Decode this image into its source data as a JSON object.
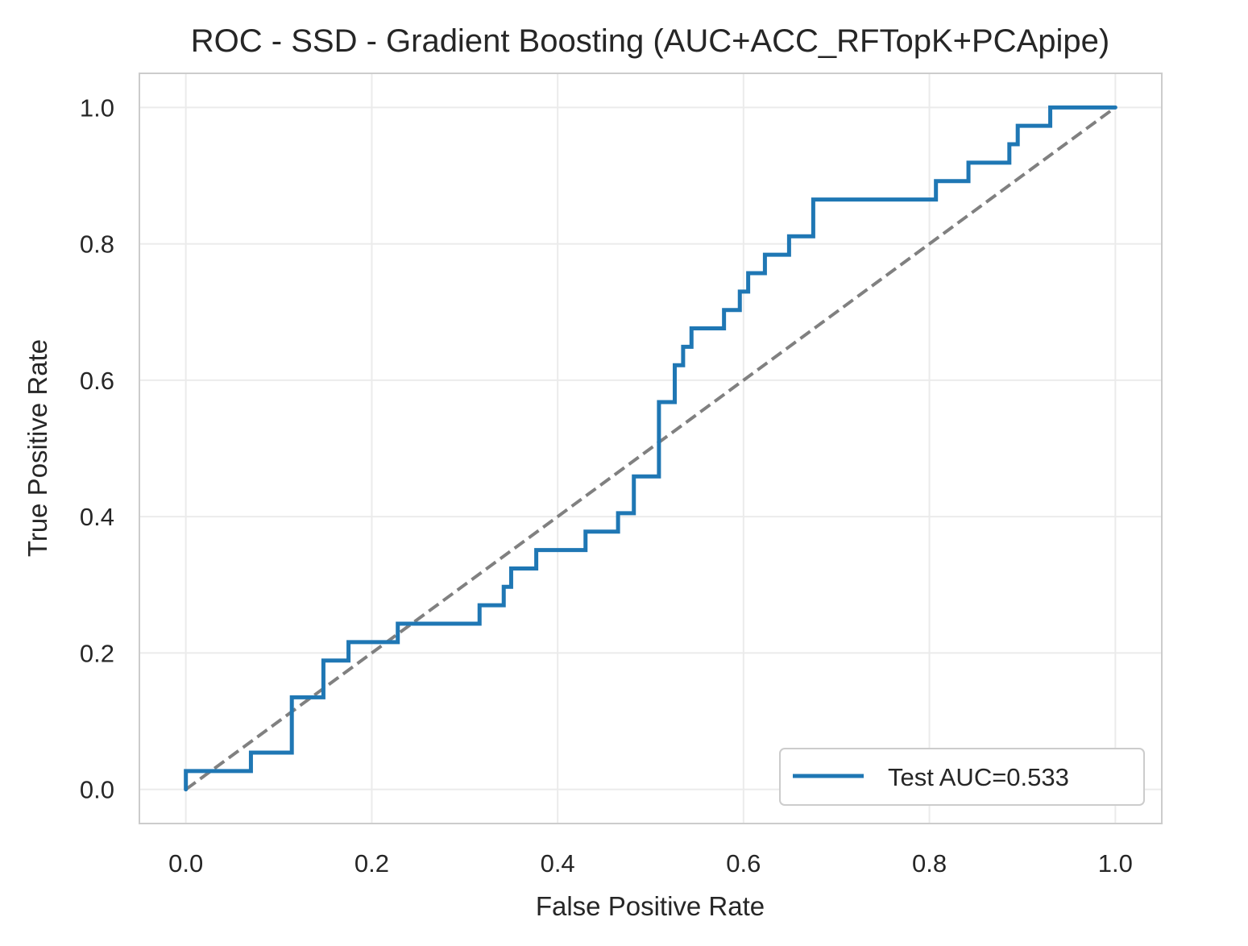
{
  "chart_data": {
    "type": "line",
    "title": "ROC - SSD - Gradient Boosting (AUC+ACC_RFTopK+PCApipe)",
    "xlabel": "False Positive Rate",
    "ylabel": "True Positive Rate",
    "xlim": [
      -0.05,
      1.05
    ],
    "ylim": [
      -0.05,
      1.05
    ],
    "xticks": [
      0.0,
      0.2,
      0.4,
      0.6,
      0.8,
      1.0
    ],
    "yticks": [
      0.0,
      0.2,
      0.4,
      0.6,
      0.8,
      1.0
    ],
    "xtick_labels": [
      "0.0",
      "0.2",
      "0.4",
      "0.6",
      "0.8",
      "1.0"
    ],
    "ytick_labels": [
      "0.0",
      "0.2",
      "0.4",
      "0.6",
      "0.8",
      "1.0"
    ],
    "grid": true,
    "legend": {
      "placement": "lower-right"
    },
    "series": [
      {
        "name": "Test AUC=0.533",
        "color": "#1f77b4",
        "x": [
          0.0,
          0.0,
          0.07,
          0.07,
          0.114,
          0.114,
          0.148,
          0.148,
          0.175,
          0.175,
          0.228,
          0.228,
          0.316,
          0.316,
          0.342,
          0.342,
          0.35,
          0.35,
          0.377,
          0.377,
          0.43,
          0.43,
          0.465,
          0.465,
          0.482,
          0.482,
          0.509,
          0.509,
          0.526,
          0.526,
          0.535,
          0.535,
          0.544,
          0.544,
          0.579,
          0.579,
          0.596,
          0.596,
          0.605,
          0.605,
          0.623,
          0.623,
          0.649,
          0.649,
          0.675,
          0.675,
          0.807,
          0.807,
          0.842,
          0.842,
          0.886,
          0.886,
          0.895,
          0.895,
          0.93,
          0.93,
          1.0
        ],
        "y": [
          0.0,
          0.027,
          0.027,
          0.054,
          0.054,
          0.135,
          0.135,
          0.189,
          0.189,
          0.216,
          0.216,
          0.243,
          0.243,
          0.27,
          0.27,
          0.297,
          0.297,
          0.324,
          0.324,
          0.351,
          0.351,
          0.378,
          0.378,
          0.405,
          0.405,
          0.459,
          0.459,
          0.568,
          0.568,
          0.622,
          0.622,
          0.649,
          0.649,
          0.676,
          0.676,
          0.703,
          0.703,
          0.73,
          0.73,
          0.757,
          0.757,
          0.784,
          0.784,
          0.811,
          0.811,
          0.865,
          0.865,
          0.892,
          0.892,
          0.919,
          0.919,
          0.946,
          0.946,
          0.973,
          0.973,
          1.0,
          1.0
        ]
      },
      {
        "name": "",
        "color": "#808080",
        "dashed": true,
        "x": [
          0.0,
          1.0
        ],
        "y": [
          0.0,
          1.0
        ]
      }
    ]
  }
}
